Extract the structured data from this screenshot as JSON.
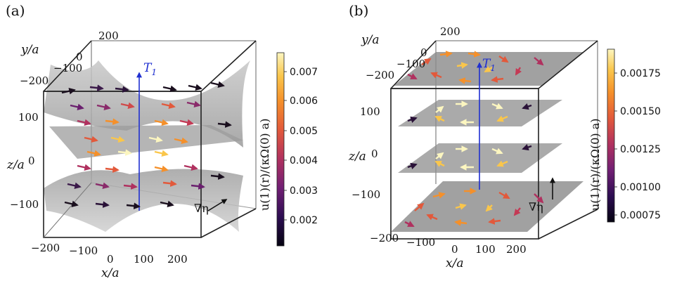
{
  "panel_a": {
    "label": "(a)",
    "y_label": "y/a",
    "z_label": "z/a",
    "x_label": "x/a",
    "y_ticks": [
      "200",
      "0",
      "−100",
      "−200"
    ],
    "z_ticks": [
      "100",
      "0",
      "−100"
    ],
    "x_ticks": [
      "−200",
      "−100",
      "0",
      "100",
      "200"
    ],
    "axis_marker": "T",
    "axis_marker_sub": "1",
    "gradient_label": "∇η",
    "colorbar": {
      "label": "u(1)(r)/(κΩ(0) a)",
      "ticks": [
        "0.007",
        "0.006",
        "0.005",
        "0.004",
        "0.003",
        "0.002"
      ]
    }
  },
  "panel_b": {
    "label": "(b)",
    "y_label": "y/a",
    "z_label": "z/a",
    "x_label": "x/a",
    "y_ticks": [
      "200",
      "0",
      "−100",
      "−200"
    ],
    "z_ticks": [
      "100",
      "0",
      "−100"
    ],
    "x_ticks": [
      "−200",
      "−100",
      "0",
      "100",
      "200"
    ],
    "axis_marker": "T",
    "axis_marker_sub": "1",
    "gradient_label": "∇η",
    "colorbar": {
      "label": "u(1)(r)/(κΩ(0) a)",
      "ticks": [
        "0.00175",
        "0.00150",
        "0.00125",
        "0.00100",
        "0.00075"
      ]
    }
  },
  "colors": {
    "axis_arrow": "#1f2fd0",
    "sheet": "#8c8c8c",
    "colormap": [
      "#050311",
      "#2d0d52",
      "#711f74",
      "#b0315f",
      "#e2593b",
      "#f5902a",
      "#fac64b",
      "#fcf6c0"
    ]
  }
}
